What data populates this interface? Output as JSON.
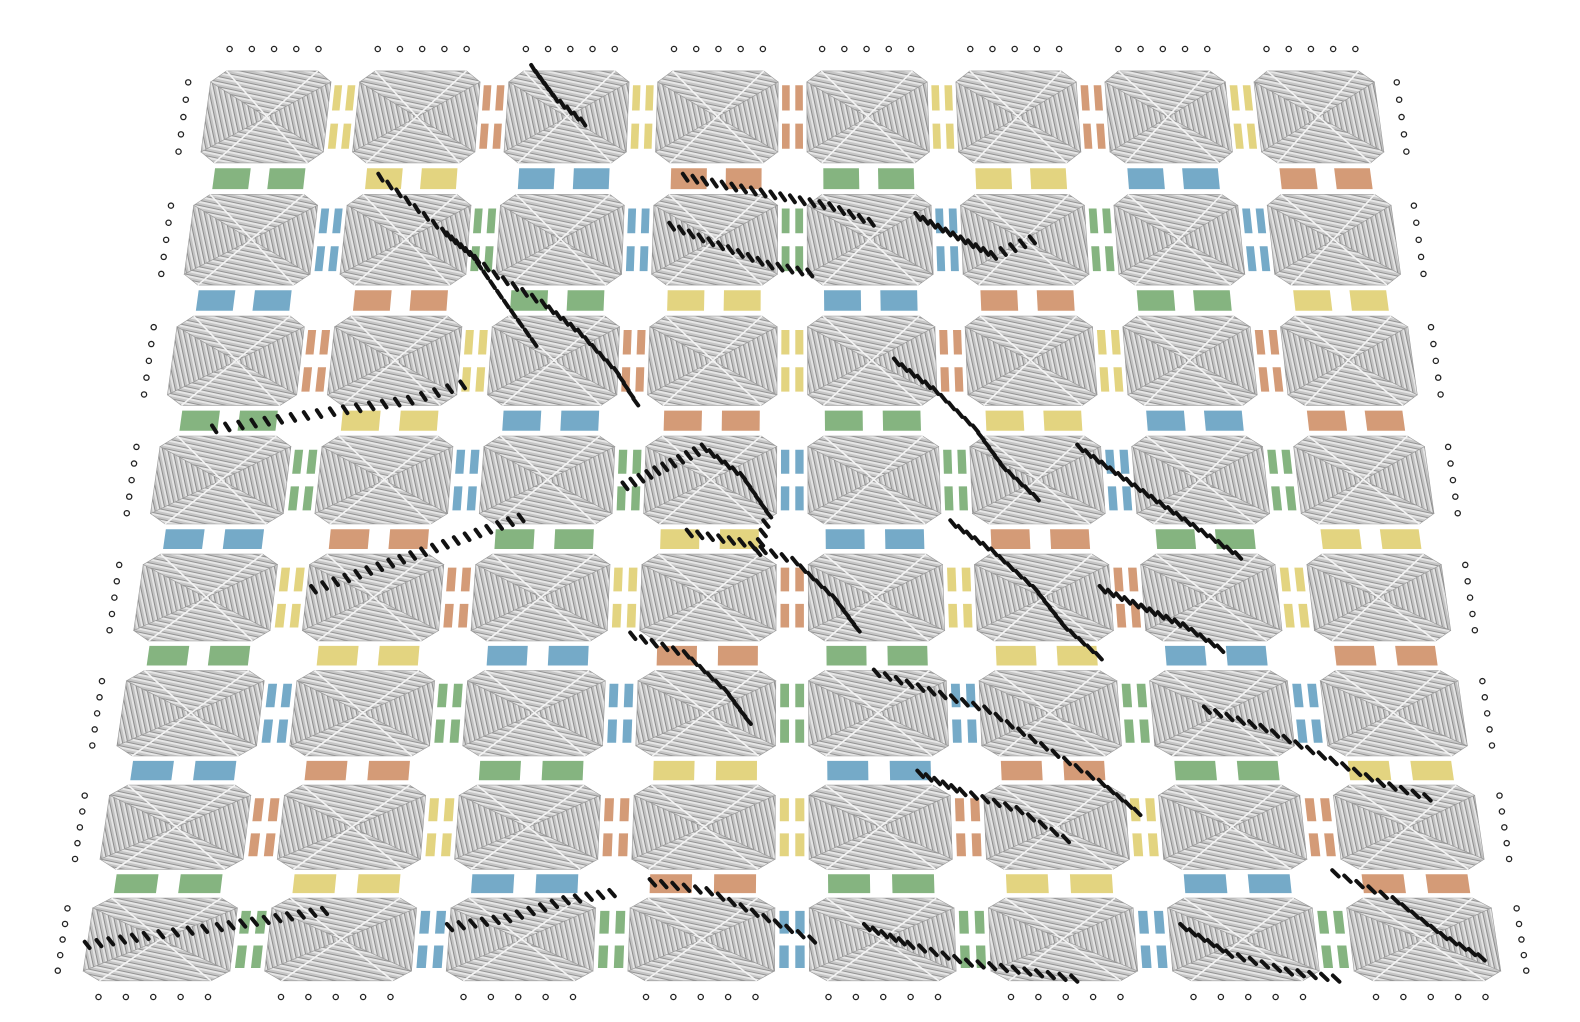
{
  "figure": {
    "title": "",
    "grid": {
      "rows": 8,
      "cols": 8
    },
    "colors": {
      "tile_fill": "#c4c4c4",
      "helix_light": "#e2e2e2",
      "helix_dark": "#8f8f8f",
      "pattern": "#111111",
      "connectors": [
        "#e2d27a",
        "#7fb07a",
        "#d29670",
        "#6ea6c6"
      ],
      "background": "#ffffff"
    },
    "icons": {
      "tile": "dna-origami-tile",
      "connector": "sticky-end-connector",
      "pattern": "pixel-pattern"
    }
  }
}
